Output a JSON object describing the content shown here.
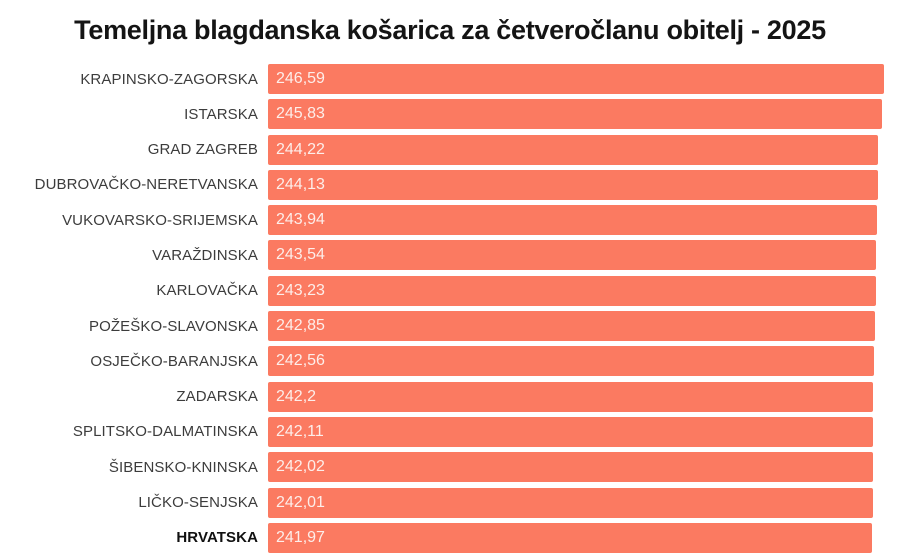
{
  "chart_data": {
    "type": "bar",
    "orientation": "horizontal",
    "title": "Temeljna blagdanska košarica za četveročlanu obitelj - 2025",
    "categories": [
      "KRAPINSKO-ZAGORSKA",
      "ISTARSKA",
      "GRAD ZAGREB",
      "DUBROVAČKO-NERETVANSKA",
      "VUKOVARSKO-SRIJEMSKA",
      "VARAŽDINSKA",
      "KARLOVAČKA",
      "POŽEŠKO-SLAVONSKA",
      "OSJEČKO-BARANJSKA",
      "ZADARSKA",
      "SPLITSKO-DALMATINSKA",
      "ŠIBENSKO-KNINSKA",
      "LIČKO-SENJSKA",
      "HRVATSKA"
    ],
    "values": [
      246.59,
      245.83,
      244.22,
      244.13,
      243.94,
      243.54,
      243.23,
      242.85,
      242.56,
      242.2,
      242.11,
      242.02,
      242.01,
      241.97
    ],
    "value_labels": [
      "246,59",
      "245,83",
      "244,22",
      "244,13",
      "243,94",
      "243,54",
      "243,23",
      "242,85",
      "242,56",
      "242,2",
      "242,11",
      "242,02",
      "242,01",
      "241,97"
    ],
    "bold_categories": [
      "HRVATSKA"
    ],
    "xlim": [
      0,
      253
    ],
    "bar_color": "#FB7A61",
    "label_color": "#3C3C3C",
    "value_text_color": "#FDEEEA",
    "grid": false,
    "legend": false,
    "xlabel": "",
    "ylabel": ""
  }
}
